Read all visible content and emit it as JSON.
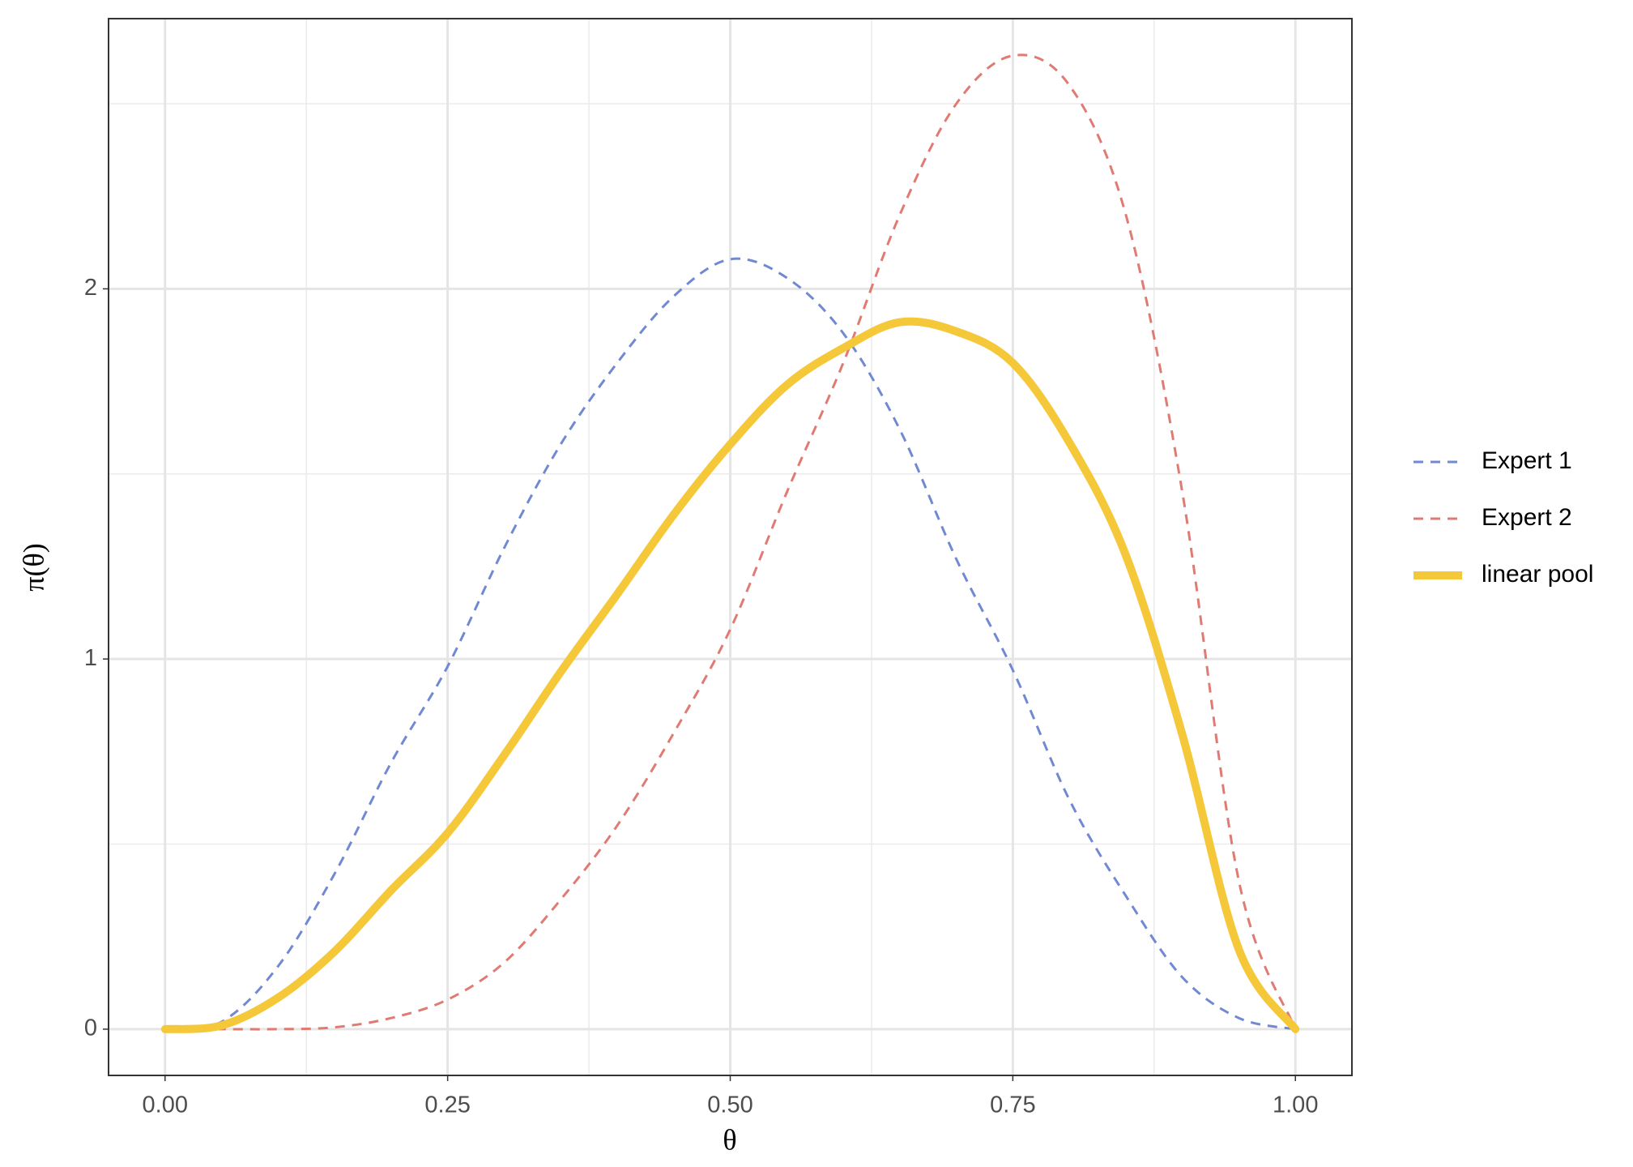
{
  "chart_data": {
    "type": "line",
    "x_label": "θ",
    "y_label": "π(θ)",
    "x": [
      0,
      0.05,
      0.1,
      0.15,
      0.2,
      0.25,
      0.3,
      0.35,
      0.4,
      0.45,
      0.5,
      0.55,
      0.6,
      0.65,
      0.7,
      0.75,
      0.8,
      0.85,
      0.9,
      0.95,
      1
    ],
    "series": [
      {
        "name": "Expert 1",
        "color": "#7189d2",
        "dash": true,
        "values": [
          0,
          0.02,
          0.17,
          0.42,
          0.72,
          0.98,
          1.3,
          1.58,
          1.8,
          1.98,
          2.08,
          2.03,
          1.88,
          1.62,
          1.27,
          0.97,
          0.62,
          0.36,
          0.14,
          0.03,
          0
        ]
      },
      {
        "name": "Expert 2",
        "color": "#e07b73",
        "dash": true,
        "values": [
          0,
          0,
          0,
          0.005,
          0.03,
          0.08,
          0.18,
          0.35,
          0.55,
          0.8,
          1.08,
          1.45,
          1.8,
          2.2,
          2.5,
          2.63,
          2.55,
          2.2,
          1.45,
          0.4,
          0
        ]
      },
      {
        "name": "linear pool",
        "color": "#f5c83a",
        "dash": false,
        "values": [
          0,
          0.01,
          0.085,
          0.21,
          0.375,
          0.53,
          0.74,
          0.965,
          1.175,
          1.39,
          1.58,
          1.74,
          1.84,
          1.91,
          1.885,
          1.8,
          1.585,
          1.28,
          0.795,
          0.215,
          0
        ]
      }
    ],
    "xlim": [
      -0.05,
      1.05
    ],
    "ylim": [
      -0.125,
      2.73
    ],
    "xticks": [
      {
        "value": 0,
        "label": "0.00"
      },
      {
        "value": 0.25,
        "label": "0.25"
      },
      {
        "value": 0.5,
        "label": "0.50"
      },
      {
        "value": 0.75,
        "label": "0.75"
      },
      {
        "value": 1,
        "label": "1.00"
      }
    ],
    "yticks": [
      0,
      1,
      2
    ],
    "grid": true,
    "legend": "right"
  }
}
